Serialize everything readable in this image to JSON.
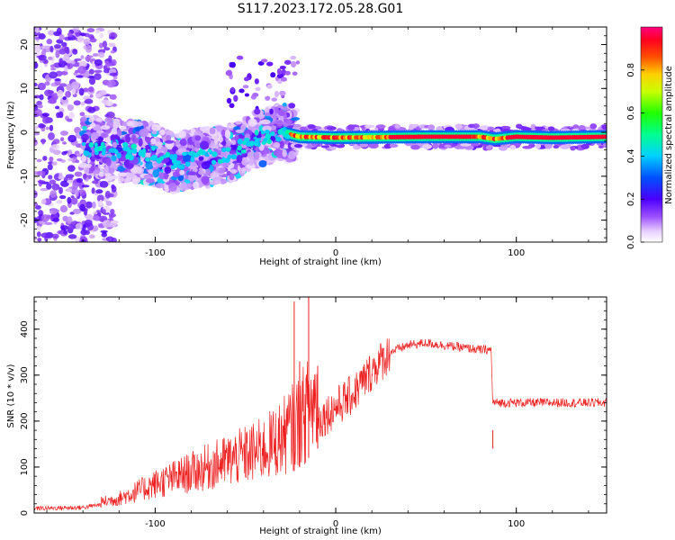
{
  "figure": {
    "title": "S117.2023.172.05.28.G01"
  },
  "chart_data": [
    {
      "type": "heatmap",
      "xlabel": "Height of straight line (km)",
      "ylabel": "Frequency (Hz)",
      "xlim": [
        -167,
        150
      ],
      "ylim": [
        -25,
        24
      ],
      "xticks": [
        -100,
        0,
        100
      ],
      "yticks": [
        -20,
        -10,
        0,
        10,
        20
      ],
      "colorbar": {
        "label": "Normalized spectral amplitude",
        "range": [
          0,
          1
        ],
        "ticks": [
          "0.0",
          "0.2",
          "0.4",
          "0.6",
          "0.8"
        ],
        "colormap": "hsv-rainbow"
      },
      "ridge": [
        {
          "x": -140,
          "y": -3.5
        },
        {
          "x": -120,
          "y": -4
        },
        {
          "x": -100,
          "y": -5
        },
        {
          "x": -90,
          "y": -7
        },
        {
          "x": -80,
          "y": -6
        },
        {
          "x": -60,
          "y": -5
        },
        {
          "x": -45,
          "y": -1.5
        },
        {
          "x": -30,
          "y": 0
        },
        {
          "x": -20,
          "y": -1
        },
        {
          "x": 0,
          "y": -1.2
        },
        {
          "x": 50,
          "y": -1
        },
        {
          "x": 80,
          "y": -1
        },
        {
          "x": 88,
          "y": -1.5
        },
        {
          "x": 100,
          "y": -1
        },
        {
          "x": 120,
          "y": -1.2
        },
        {
          "x": 150,
          "y": -1
        }
      ]
    },
    {
      "type": "line",
      "xlabel": "Height of straight line (km)",
      "ylabel": "SNR (10 * v/v)",
      "xlim": [
        -167,
        150
      ],
      "ylim": [
        0,
        470
      ],
      "xticks": [
        -100,
        0,
        100
      ],
      "yticks": [
        0,
        100,
        200,
        300,
        400
      ],
      "series": [
        {
          "color": "#ee2020",
          "envelope": [
            {
              "x": -167,
              "y": 10
            },
            {
              "x": -140,
              "y": 12
            },
            {
              "x": -120,
              "y": 25
            },
            {
              "x": -100,
              "y": 50
            },
            {
              "x": -80,
              "y": 70
            },
            {
              "x": -60,
              "y": 90
            },
            {
              "x": -40,
              "y": 110
            },
            {
              "x": -30,
              "y": 130
            },
            {
              "x": -20,
              "y": 160
            },
            {
              "x": -10,
              "y": 200
            },
            {
              "x": 0,
              "y": 230
            },
            {
              "x": 10,
              "y": 260
            },
            {
              "x": 20,
              "y": 310
            },
            {
              "x": 30,
              "y": 350
            },
            {
              "x": 40,
              "y": 365
            },
            {
              "x": 50,
              "y": 370
            },
            {
              "x": 60,
              "y": 365
            },
            {
              "x": 70,
              "y": 360
            },
            {
              "x": 80,
              "y": 355
            },
            {
              "x": 86,
              "y": 355
            },
            {
              "x": 87,
              "y": 240
            },
            {
              "x": 100,
              "y": 240
            },
            {
              "x": 120,
              "y": 240
            },
            {
              "x": 150,
              "y": 240
            }
          ],
          "spikes": [
            {
              "x": -23,
              "y": 460
            },
            {
              "x": -15,
              "y": 470
            },
            {
              "x": -20,
              "y": 330
            },
            {
              "x": -10,
              "y": 320
            },
            {
              "x": 87,
              "y": 140
            }
          ]
        }
      ]
    }
  ]
}
